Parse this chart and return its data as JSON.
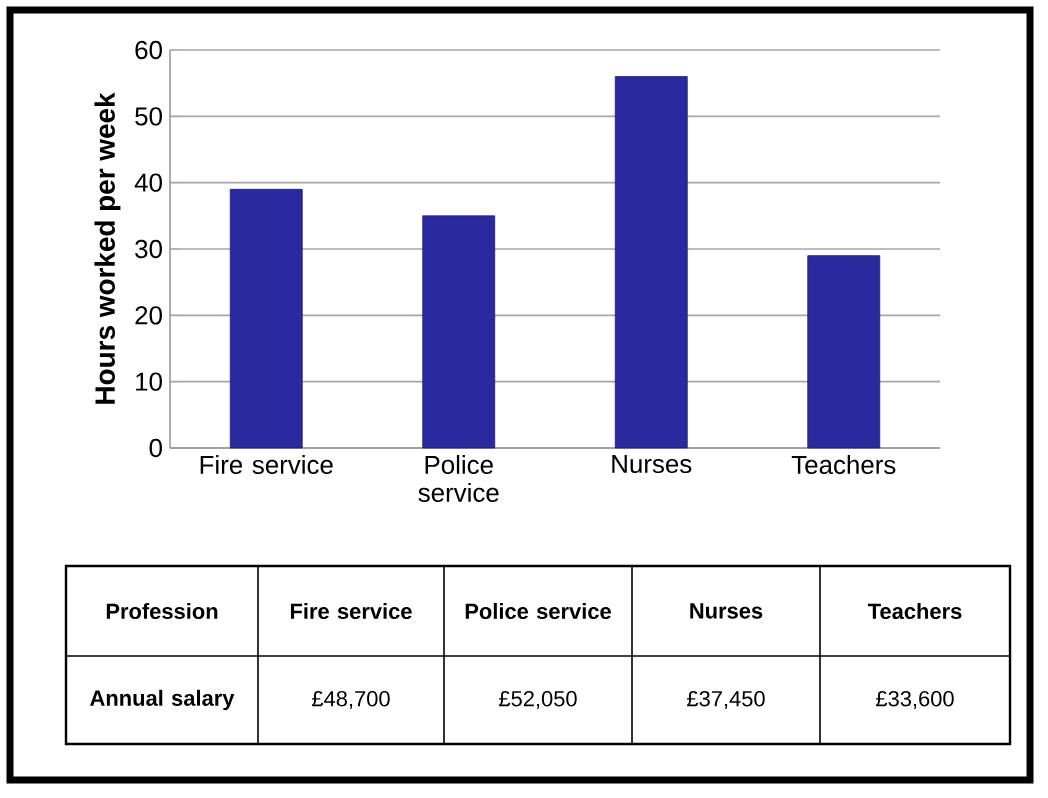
{
  "chart_data": [
    {
      "type": "bar",
      "ylabel": "Hours worked per week",
      "categories": [
        "Fire service",
        "Police service",
        "Nurses",
        "Teachers"
      ],
      "values": [
        39,
        35,
        56,
        29
      ],
      "color": "#2a2a9e",
      "ylim": [
        0,
        60
      ],
      "yticks": [
        0,
        10,
        20,
        30,
        40,
        50,
        60
      ],
      "grid": "y"
    },
    {
      "type": "other",
      "xlabel": "Profession",
      "ylabel": "Annual salary",
      "categories": [
        "Fire service",
        "Police service",
        "Nurses",
        "Teachers"
      ],
      "values": [
        48700,
        52050,
        37450,
        33600
      ],
      "value_labels": [
        "£48,700",
        "£52,050",
        "£37,450",
        "£33,600"
      ]
    }
  ]
}
